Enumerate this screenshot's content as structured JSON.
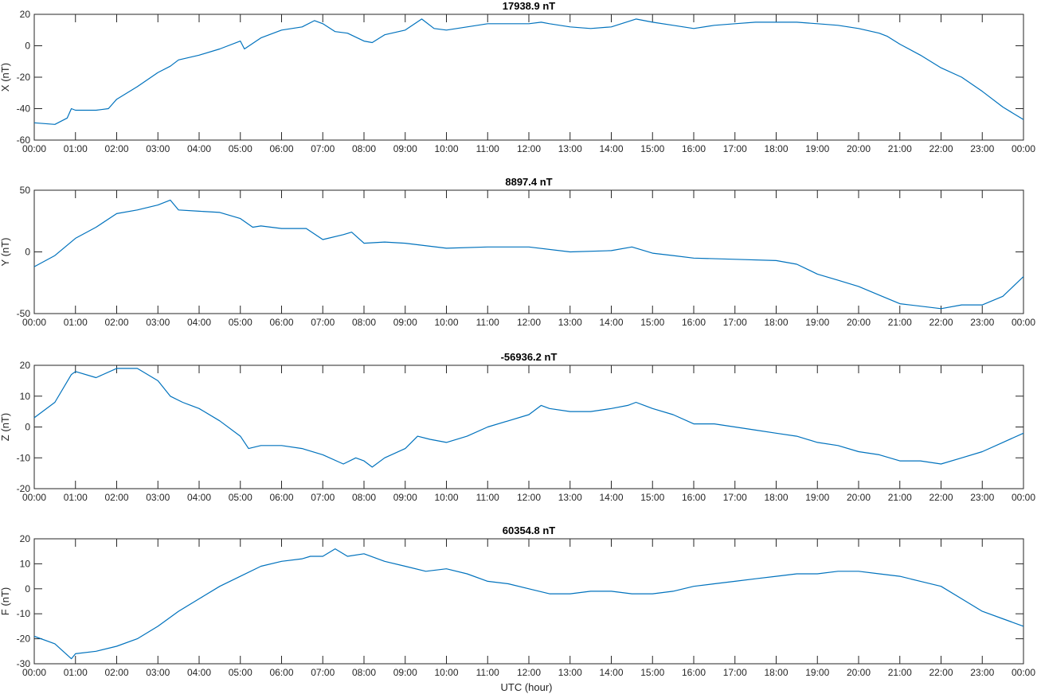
{
  "xlabel": "UTC (hour)",
  "x_tick_labels": [
    "00:00",
    "01:00",
    "02:00",
    "03:00",
    "04:00",
    "05:00",
    "06:00",
    "07:00",
    "08:00",
    "09:00",
    "10:00",
    "11:00",
    "12:00",
    "13:00",
    "14:00",
    "15:00",
    "16:00",
    "17:00",
    "18:00",
    "19:00",
    "20:00",
    "21:00",
    "22:00",
    "23:00",
    "00:00"
  ],
  "line_color": "#0072bd",
  "chart_data": [
    {
      "type": "line",
      "title": "17938.9 nT",
      "ylabel": "X (nT)",
      "xlim": [
        0,
        24
      ],
      "ylim": [
        -60,
        20
      ],
      "yticks": [
        -60,
        -40,
        -20,
        0,
        20
      ],
      "grid": false,
      "x": [
        0,
        0.5,
        0.8,
        0.9,
        1.0,
        1.5,
        1.8,
        2.0,
        2.5,
        3.0,
        3.3,
        3.5,
        4.0,
        4.5,
        5.0,
        5.1,
        5.5,
        6.0,
        6.5,
        6.8,
        7.0,
        7.3,
        7.6,
        8.0,
        8.2,
        8.5,
        9.0,
        9.4,
        9.7,
        10.0,
        10.5,
        11.0,
        11.5,
        12.0,
        12.3,
        12.5,
        13.0,
        13.5,
        14.0,
        14.6,
        15.0,
        15.5,
        16.0,
        16.5,
        17.0,
        17.5,
        18.0,
        18.5,
        19.0,
        19.5,
        20.0,
        20.5,
        20.7,
        21.0,
        21.5,
        22.0,
        22.5,
        23.0,
        23.5,
        24.0
      ],
      "y": [
        -49,
        -50,
        -46,
        -40,
        -41,
        -41,
        -40,
        -34,
        -26,
        -17,
        -13,
        -9,
        -6,
        -2,
        3,
        -2,
        5,
        10,
        12,
        16,
        14,
        9,
        8,
        3,
        2,
        7,
        10,
        17,
        11,
        10,
        12,
        14,
        14,
        14,
        15,
        14,
        12,
        11,
        12,
        17,
        15,
        13,
        11,
        13,
        14,
        15,
        15,
        15,
        14,
        13,
        11,
        8,
        6,
        1,
        -6,
        -14,
        -20,
        -29,
        -39,
        -47
      ]
    },
    {
      "type": "line",
      "title": "8897.4 nT",
      "ylabel": "Y (nT)",
      "xlim": [
        0,
        24
      ],
      "ylim": [
        -50,
        50
      ],
      "yticks": [
        -50,
        0,
        50
      ],
      "grid": false,
      "x": [
        0,
        0.5,
        1.0,
        1.5,
        2.0,
        2.5,
        3.0,
        3.3,
        3.5,
        4.0,
        4.5,
        5.0,
        5.3,
        5.5,
        6.0,
        6.6,
        7.0,
        7.5,
        7.7,
        8.0,
        8.5,
        9.0,
        10.0,
        11.0,
        12.0,
        13.0,
        14.0,
        14.5,
        15.0,
        15.5,
        16.0,
        17.0,
        18.0,
        18.5,
        19.0,
        19.5,
        20.0,
        20.5,
        21.0,
        21.5,
        22.0,
        22.5,
        23.0,
        23.5,
        24.0
      ],
      "y": [
        -12,
        -3,
        11,
        20,
        31,
        34,
        38,
        42,
        34,
        33,
        32,
        27,
        20,
        21,
        19,
        19,
        10,
        14,
        16,
        7,
        8,
        7,
        3,
        4,
        4,
        0,
        1,
        4,
        -1,
        -3,
        -5,
        -6,
        -7,
        -10,
        -18,
        -23,
        -28,
        -35,
        -42,
        -44,
        -46,
        -43,
        -43,
        -36,
        -20
      ]
    },
    {
      "type": "line",
      "title": "-56936.2 nT",
      "ylabel": "Z (nT)",
      "xlim": [
        0,
        24
      ],
      "ylim": [
        -20,
        20
      ],
      "yticks": [
        -20,
        -10,
        0,
        10,
        20
      ],
      "grid": false,
      "x": [
        0,
        0.5,
        0.9,
        1.0,
        1.5,
        2.0,
        2.5,
        3.0,
        3.3,
        3.6,
        4.0,
        4.5,
        5.0,
        5.2,
        5.5,
        6.0,
        6.5,
        7.0,
        7.5,
        7.8,
        8.0,
        8.2,
        8.5,
        9.0,
        9.3,
        9.6,
        10.0,
        10.5,
        11.0,
        11.5,
        12.0,
        12.3,
        12.5,
        13.0,
        13.5,
        14.0,
        14.4,
        14.6,
        15.0,
        15.5,
        16.0,
        16.5,
        17.0,
        17.5,
        18.0,
        18.5,
        19.0,
        19.5,
        20.0,
        20.5,
        21.0,
        21.5,
        22.0,
        22.5,
        23.0,
        23.5,
        24.0
      ],
      "y": [
        3,
        8,
        17,
        18,
        16,
        19,
        19,
        15,
        10,
        8,
        6,
        2,
        -3,
        -7,
        -6,
        -6,
        -7,
        -9,
        -12,
        -10,
        -11,
        -13,
        -10,
        -7,
        -3,
        -4,
        -5,
        -3,
        0,
        2,
        4,
        7,
        6,
        5,
        5,
        6,
        7,
        8,
        6,
        4,
        1,
        1,
        0,
        -1,
        -2,
        -3,
        -5,
        -6,
        -8,
        -9,
        -11,
        -11,
        -12,
        -10,
        -8,
        -5,
        -2
      ]
    },
    {
      "type": "line",
      "title": "60354.8 nT",
      "ylabel": "F (nT)",
      "xlim": [
        0,
        24
      ],
      "ylim": [
        -30,
        20
      ],
      "yticks": [
        -30,
        -20,
        -10,
        0,
        10,
        20
      ],
      "grid": false,
      "x": [
        0,
        0.5,
        0.9,
        1.0,
        1.5,
        2.0,
        2.5,
        3.0,
        3.5,
        4.0,
        4.5,
        5.0,
        5.5,
        6.0,
        6.5,
        6.7,
        7.0,
        7.3,
        7.6,
        8.0,
        8.5,
        9.0,
        9.5,
        10.0,
        10.5,
        11.0,
        11.5,
        12.0,
        12.5,
        13.0,
        13.5,
        14.0,
        14.5,
        15.0,
        15.5,
        16.0,
        16.5,
        17.0,
        17.5,
        18.0,
        18.5,
        19.0,
        19.5,
        20.0,
        20.5,
        21.0,
        21.5,
        22.0,
        22.5,
        23.0,
        23.5,
        24.0
      ],
      "y": [
        -19,
        -22,
        -28,
        -26,
        -25,
        -23,
        -20,
        -15,
        -9,
        -4,
        1,
        5,
        9,
        11,
        12,
        13,
        13,
        16,
        13,
        14,
        11,
        9,
        7,
        8,
        6,
        3,
        2,
        0,
        -2,
        -2,
        -1,
        -1,
        -2,
        -2,
        -1,
        1,
        2,
        3,
        4,
        5,
        6,
        6,
        7,
        7,
        6,
        5,
        3,
        1,
        -4,
        -9,
        -12,
        -15
      ]
    }
  ]
}
